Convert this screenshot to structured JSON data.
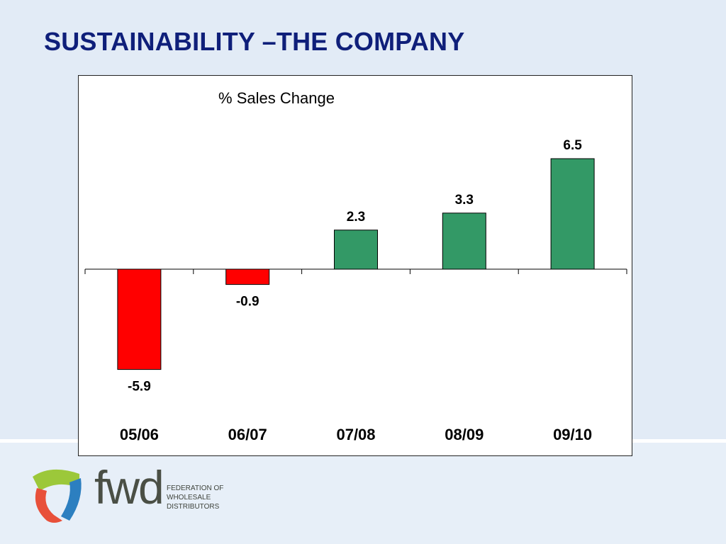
{
  "slide": {
    "title": "SUSTAINABILITY –THE COMPANY"
  },
  "chart_data": {
    "type": "bar",
    "title": "% Sales Change",
    "categories": [
      "05/06",
      "06/07",
      "07/08",
      "08/09",
      "09/10"
    ],
    "values": [
      -5.9,
      -0.9,
      2.3,
      3.3,
      6.5
    ],
    "data_labels": [
      "-5.9",
      "-0.9",
      "2.3",
      "3.3",
      "6.5"
    ],
    "xlabel": "",
    "ylabel": "",
    "ylim": [
      -5.9,
      6.5
    ],
    "grid": false,
    "colors": {
      "negative": "#ff0000",
      "positive": "#339966"
    }
  },
  "logo": {
    "word": "fwd",
    "lines": [
      "FEDERATION OF",
      "WHOLESALE",
      "DISTRIBUTORS"
    ],
    "colors": {
      "green": "#9cc83a",
      "blue": "#2c7fc0",
      "red": "#e8503a"
    }
  }
}
